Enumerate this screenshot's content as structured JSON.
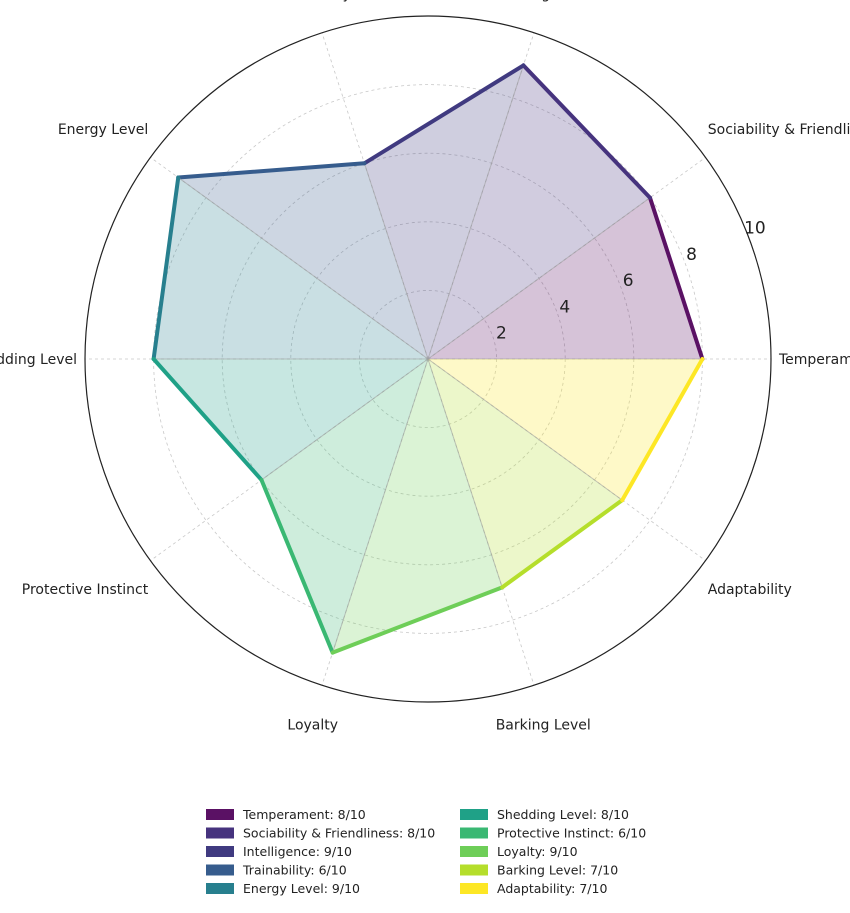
{
  "chart_data": {
    "type": "radar",
    "title": "",
    "rlim": [
      0,
      10
    ],
    "r_ticks": [
      2,
      4,
      6,
      8,
      10
    ],
    "categories": [
      "Temperament",
      "Sociability & Friendliness",
      "Intelligence",
      "Trainability",
      "Energy Level",
      "Shedding Level",
      "Protective Instinct",
      "Loyalty",
      "Barking Level",
      "Adaptability"
    ],
    "values": [
      8,
      8,
      9,
      6,
      9,
      8,
      6,
      9,
      7,
      7
    ],
    "colors": [
      "#5a1164",
      "#46337e",
      "#403a80",
      "#365c8d",
      "#277f8e",
      "#1fa187",
      "#3ab873",
      "#6ece58",
      "#b5de2b",
      "#fde725"
    ],
    "legend": {
      "placement": "bottom-center",
      "entries": [
        "Temperament: 8/10",
        "Sociability & Friendliness: 8/10",
        "Intelligence: 9/10",
        "Trainability: 6/10",
        "Energy Level: 9/10",
        "Shedding Level: 8/10",
        "Protective Instinct: 6/10",
        "Loyalty: 9/10",
        "Barking Level: 7/10",
        "Adaptability: 7/10"
      ]
    }
  }
}
